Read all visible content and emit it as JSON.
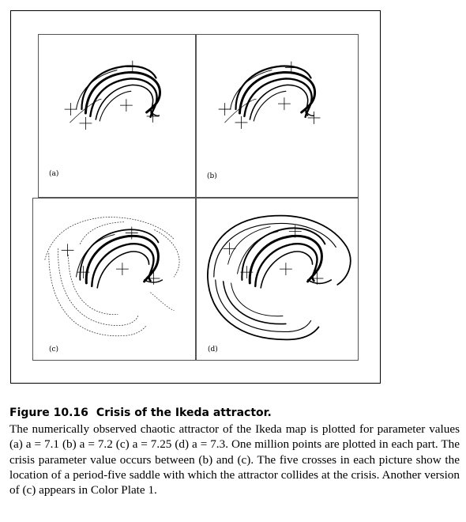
{
  "figure": {
    "number": "Figure 10.16",
    "title": "Crisis of the Ikeda attractor.",
    "caption": "The numerically observed chaotic attractor of the Ikeda map is plotted for parameter values (a) a = 7.1 (b) a = 7.2 (c) a = 7.25 (d) a = 7.3. One million points are plotted in each part. The crisis parameter value occurs between (b) and (c). The five crosses in each picture show the location of a period-five saddle with which the attractor collides at the crisis. Another version of (c) appears in Color Plate 1."
  },
  "panels": [
    {
      "id": "a",
      "label": "(a)"
    },
    {
      "id": "b",
      "label": "(b)"
    },
    {
      "id": "c",
      "label": "(c)"
    },
    {
      "id": "d",
      "label": "(d)"
    }
  ]
}
